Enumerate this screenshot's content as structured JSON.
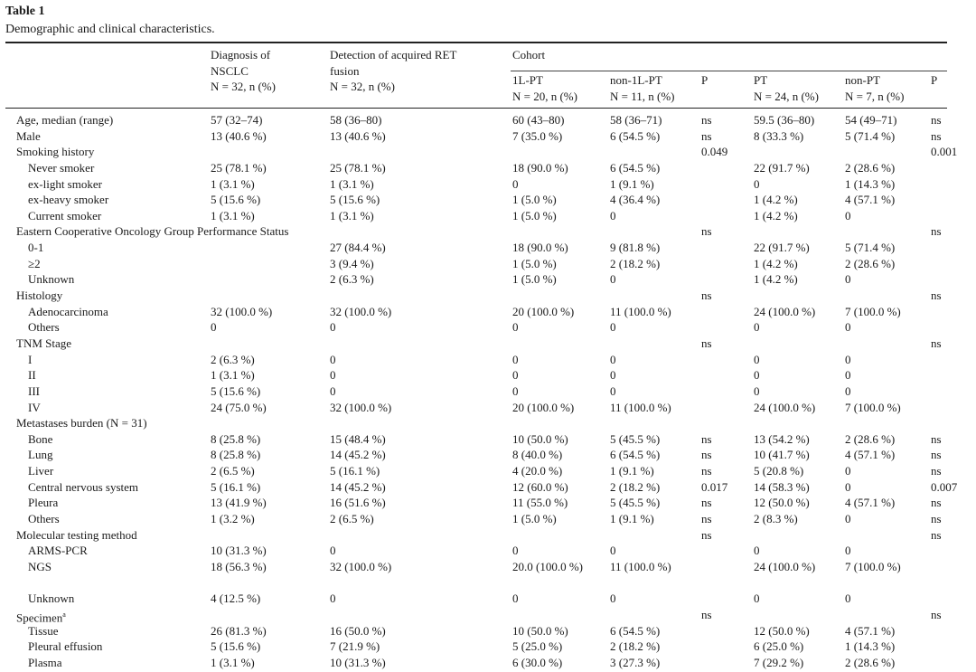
{
  "table": {
    "number": "Table 1",
    "caption": "Demographic and clinical characteristics.",
    "headers": {
      "diagnosis": [
        "Diagnosis of",
        "NSCLC",
        "N = 32, n (%)"
      ],
      "detection": [
        "Detection of acquired RET",
        "fusion",
        "N = 32, n (%)"
      ],
      "cohort": "Cohort",
      "l1pt": [
        "1L-PT",
        "N = 20, n (%)"
      ],
      "non1lpt": [
        "non-1L-PT",
        "N = 11, n (%)"
      ],
      "p1": "P",
      "pt": [
        "PT",
        "N = 24, n (%)"
      ],
      "nonpt": [
        "non-PT",
        "N = 7, n (%)"
      ],
      "p2": "P"
    },
    "rows": [
      {
        "label": "Age, median (range)",
        "ind": false,
        "c": [
          "57 (32–74)",
          "58 (36–80)",
          "60 (43–80)",
          "58 (36–71)",
          "ns",
          "59.5 (36–80)",
          "54 (49–71)",
          "ns"
        ]
      },
      {
        "label": "Male",
        "ind": false,
        "c": [
          "13 (40.6 %)",
          "13 (40.6 %)",
          "7 (35.0 %)",
          "6 (54.5 %)",
          "ns",
          "8 (33.3 %)",
          "5 (71.4 %)",
          "ns"
        ]
      },
      {
        "label": "Smoking history",
        "ind": false,
        "c": [
          "",
          "",
          "",
          "",
          "0.049",
          "",
          "",
          "0.001"
        ]
      },
      {
        "label": "Never smoker",
        "ind": true,
        "c": [
          "25 (78.1 %)",
          "25 (78.1 %)",
          "18 (90.0 %)",
          "6 (54.5 %)",
          "",
          "22 (91.7 %)",
          "2 (28.6 %)",
          ""
        ]
      },
      {
        "label": "ex-light smoker",
        "ind": true,
        "c": [
          "1 (3.1 %)",
          "1 (3.1 %)",
          "0",
          "1 (9.1 %)",
          "",
          "0",
          "1 (14.3 %)",
          ""
        ]
      },
      {
        "label": "ex-heavy smoker",
        "ind": true,
        "c": [
          "5 (15.6 %)",
          "5 (15.6 %)",
          "1 (5.0 %)",
          "4 (36.4 %)",
          "",
          "1 (4.2 %)",
          "4 (57.1 %)",
          ""
        ]
      },
      {
        "label": "Current smoker",
        "ind": true,
        "c": [
          "1 (3.1 %)",
          "1 (3.1 %)",
          "1 (5.0 %)",
          "0",
          "",
          "1 (4.2 %)",
          "0",
          ""
        ]
      },
      {
        "label": "Eastern Cooperative Oncology Group Performance Status",
        "ind": false,
        "c": [
          "",
          "",
          "",
          "",
          "ns",
          "",
          "",
          "ns"
        ]
      },
      {
        "label": "0-1",
        "ind": true,
        "c": [
          "",
          "27 (84.4 %)",
          "18 (90.0 %)",
          "9 (81.8 %)",
          "",
          "22 (91.7 %)",
          "5 (71.4 %)",
          ""
        ]
      },
      {
        "label": "≥2",
        "ind": true,
        "c": [
          "",
          "3 (9.4 %)",
          "1 (5.0 %)",
          "2 (18.2 %)",
          "",
          "1 (4.2 %)",
          "2 (28.6 %)",
          ""
        ]
      },
      {
        "label": "Unknown",
        "ind": true,
        "c": [
          "",
          "2 (6.3 %)",
          "1 (5.0 %)",
          "0",
          "",
          "1 (4.2 %)",
          "0",
          ""
        ]
      },
      {
        "label": "Histology",
        "ind": false,
        "c": [
          "",
          "",
          "",
          "",
          "ns",
          "",
          "",
          "ns"
        ]
      },
      {
        "label": "Adenocarcinoma",
        "ind": true,
        "c": [
          "32 (100.0 %)",
          "32 (100.0 %)",
          "20 (100.0 %)",
          "11 (100.0 %)",
          "",
          "24 (100.0 %)",
          "7 (100.0 %)",
          ""
        ]
      },
      {
        "label": "Others",
        "ind": true,
        "c": [
          "0",
          "0",
          "0",
          "0",
          "",
          "0",
          "0",
          ""
        ]
      },
      {
        "label": "TNM Stage",
        "ind": false,
        "c": [
          "",
          "",
          "",
          "",
          "ns",
          "",
          "",
          "ns"
        ]
      },
      {
        "label": "I",
        "ind": true,
        "c": [
          "2 (6.3 %)",
          "0",
          "0",
          "0",
          "",
          "0",
          "0",
          ""
        ]
      },
      {
        "label": "II",
        "ind": true,
        "c": [
          "1 (3.1 %)",
          "0",
          "0",
          "0",
          "",
          "0",
          "0",
          ""
        ]
      },
      {
        "label": "III",
        "ind": true,
        "c": [
          "5 (15.6 %)",
          "0",
          "0",
          "0",
          "",
          "0",
          "0",
          ""
        ]
      },
      {
        "label": "IV",
        "ind": true,
        "c": [
          "24 (75.0 %)",
          "32 (100.0 %)",
          "20 (100.0 %)",
          "11 (100.0 %)",
          "",
          "24 (100.0 %)",
          "7 (100.0 %)",
          ""
        ]
      },
      {
        "label": "Metastases burden (N = 31)",
        "ind": false,
        "c": [
          "",
          "",
          "",
          "",
          "",
          "",
          "",
          ""
        ]
      },
      {
        "label": "Bone",
        "ind": true,
        "c": [
          "8 (25.8 %)",
          "15 (48.4 %)",
          "10 (50.0 %)",
          "5 (45.5 %)",
          "ns",
          "13 (54.2 %)",
          "2 (28.6 %)",
          "ns"
        ]
      },
      {
        "label": "Lung",
        "ind": true,
        "c": [
          "8 (25.8 %)",
          "14 (45.2 %)",
          "8 (40.0 %)",
          "6 (54.5 %)",
          "ns",
          "10 (41.7 %)",
          "4 (57.1 %)",
          "ns"
        ]
      },
      {
        "label": "Liver",
        "ind": true,
        "c": [
          "2 (6.5 %)",
          "5 (16.1 %)",
          "4 (20.0 %)",
          "1 (9.1 %)",
          "ns",
          "5 (20.8 %)",
          "0",
          "ns"
        ]
      },
      {
        "label": "Central nervous system",
        "ind": true,
        "c": [
          "5 (16.1 %)",
          "14 (45.2 %)",
          "12 (60.0 %)",
          "2 (18.2 %)",
          "0.017",
          "14 (58.3 %)",
          "0",
          "0.007"
        ]
      },
      {
        "label": "Pleura",
        "ind": true,
        "c": [
          "13 (41.9 %)",
          "16 (51.6 %)",
          "11 (55.0 %)",
          "5 (45.5 %)",
          "ns",
          "12 (50.0 %)",
          "4 (57.1 %)",
          "ns"
        ]
      },
      {
        "label": "Others",
        "ind": true,
        "c": [
          "1 (3.2 %)",
          "2 (6.5 %)",
          "1 (5.0 %)",
          "1 (9.1 %)",
          "ns",
          "2 (8.3 %)",
          "0",
          "ns"
        ]
      },
      {
        "label": "Molecular testing method",
        "ind": false,
        "c": [
          "",
          "",
          "",
          "",
          "ns",
          "",
          "",
          "ns"
        ]
      },
      {
        "label": "ARMS-PCR",
        "ind": true,
        "c": [
          "10 (31.3 %)",
          "0",
          "0",
          "0",
          "",
          "0",
          "0",
          ""
        ]
      },
      {
        "label": "NGS",
        "ind": true,
        "tall": true,
        "c": [
          "18 (56.3 %)",
          "32 (100.0 %)",
          "20.0 (100.0 %)",
          "11 (100.0 %)",
          "",
          "24 (100.0 %)",
          "7 (100.0 %)",
          ""
        ]
      },
      {
        "label": "Unknown",
        "ind": true,
        "c": [
          "4 (12.5 %)",
          "0",
          "0",
          "0",
          "",
          "0",
          "0",
          ""
        ]
      },
      {
        "label": "Specimen",
        "sup": "a",
        "ind": false,
        "c": [
          "",
          "",
          "",
          "",
          "ns",
          "",
          "",
          "ns"
        ]
      },
      {
        "label": "Tissue",
        "ind": true,
        "c": [
          "26 (81.3 %)",
          "16 (50.0 %)",
          "10 (50.0 %)",
          "6 (54.5 %)",
          "",
          "12 (50.0 %)",
          "4 (57.1 %)",
          ""
        ]
      },
      {
        "label": "Pleural effusion",
        "ind": true,
        "c": [
          "5 (15.6 %)",
          "7 (21.9 %)",
          "5 (25.0 %)",
          "2 (18.2 %)",
          "",
          "6 (25.0 %)",
          "1 (14.3 %)",
          ""
        ]
      },
      {
        "label": "Plasma",
        "ind": true,
        "c": [
          "1 (3.1 %)",
          "10 (31.3 %)",
          "6 (30.0 %)",
          "3 (27.3 %)",
          "",
          "7 (29.2 %)",
          "2 (28.6 %)",
          ""
        ]
      }
    ]
  }
}
